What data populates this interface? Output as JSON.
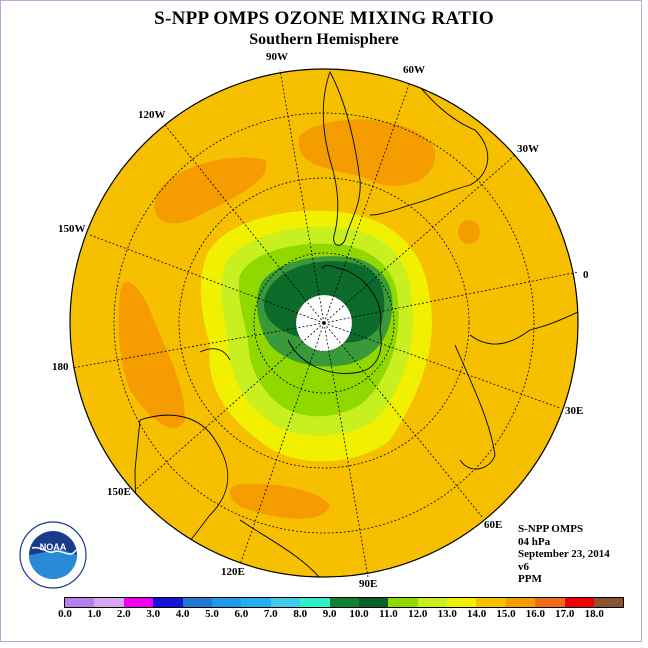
{
  "title": "S-NPP OMPS OZONE MIXING RATIO",
  "subtitle": "Southern Hemisphere",
  "longitude_labels": [
    "90W",
    "60W",
    "30W",
    "0",
    "30E",
    "60E",
    "90E",
    "120E",
    "150E",
    "180",
    "150W",
    "120W"
  ],
  "info": {
    "instrument": "S-NPP OMPS",
    "pressure": "04 hPa",
    "date": "September 23, 2014",
    "version": "v6",
    "units": "PPM"
  },
  "colorbar": {
    "ticks": [
      "0.0",
      "1.0",
      "2.0",
      "3.0",
      "4.0",
      "5.0",
      "6.0",
      "7.0",
      "8.0",
      "9.0",
      "10.0",
      "11.0",
      "12.0",
      "13.0",
      "14.0",
      "15.0",
      "16.0",
      "17.0",
      "18.0"
    ],
    "colors": [
      "#b97ee8",
      "#d9a6f0",
      "#ee00ee",
      "#1414d8",
      "#1e7ad0",
      "#1e9ae8",
      "#20b0f0",
      "#40cce8",
      "#30f0c8",
      "#108030",
      "#086028",
      "#90d800",
      "#c8f020",
      "#f0f000",
      "#f6c000",
      "#f59c00",
      "#f06a18",
      "#f00000",
      "#885530"
    ]
  },
  "map_fields": {
    "background": "#f6c000",
    "high": "#f59c00",
    "level_13": "#f0f000",
    "level_12": "#c8f020",
    "level_11": "#90d800",
    "level_10": "#3a9a3a",
    "level_9": "#0c6a2a",
    "missing": "#ffffff"
  },
  "logo": {
    "text": "NOAA",
    "ring_text": "NATIONAL OCEANIC AND ATMOSPHERIC ADMINISTRATION · U.S. DEPARTMENT OF COMMERCE"
  }
}
